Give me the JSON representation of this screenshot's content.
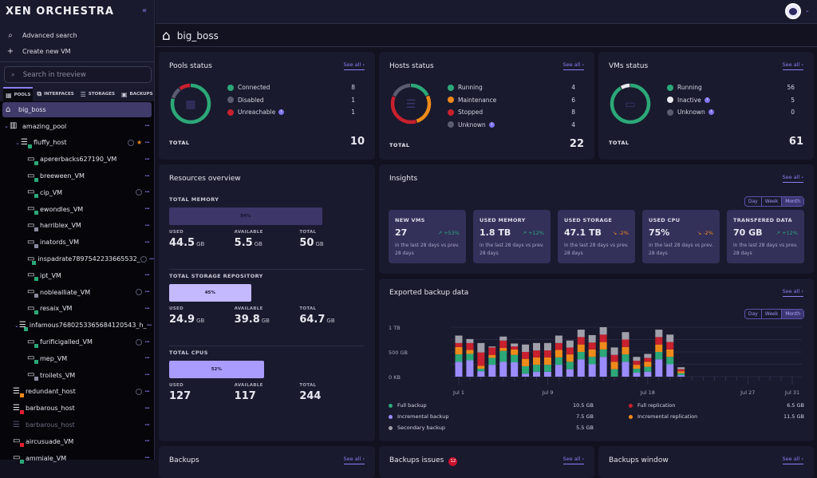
{
  "app": {
    "title": "XEN ORCHESTRA"
  },
  "sidebar": {
    "actions": [
      {
        "label": "Advanced search",
        "icon": "search-icon"
      },
      {
        "label": "Create new VM",
        "icon": "plus-icon"
      }
    ],
    "search_placeholder": "Search in treeview",
    "tabs": [
      {
        "label": "POOLS",
        "active": true
      },
      {
        "label": "INTERFACES"
      },
      {
        "label": "STORAGES"
      },
      {
        "label": "BACKUPS"
      }
    ],
    "tree": [
      {
        "name": "big_boss",
        "type": "home",
        "level": 0,
        "selected": true
      },
      {
        "name": "amazing_pool",
        "type": "pool",
        "level": 0,
        "expanded": true
      },
      {
        "name": "fluffy_host",
        "type": "host",
        "level": 1,
        "expanded": true,
        "status": "running",
        "spinner": true,
        "star": true
      },
      {
        "name": "apererbacks627190_VM",
        "type": "vm",
        "level": 2,
        "status": "running"
      },
      {
        "name": "breeween_VM",
        "type": "vm",
        "level": 2,
        "status": "running"
      },
      {
        "name": "cip_VM",
        "type": "vm",
        "level": 2,
        "status": "running",
        "spinner": true
      },
      {
        "name": "ewondles_VM",
        "type": "vm",
        "level": 2,
        "status": "running"
      },
      {
        "name": "harriblex_VM",
        "type": "vm",
        "level": 2,
        "status": "paused"
      },
      {
        "name": "inatords_VM",
        "type": "vm",
        "level": 2,
        "status": "paused"
      },
      {
        "name": "inspadrate7897542233665532_",
        "type": "vm",
        "level": 2,
        "status": "running",
        "spinner": true
      },
      {
        "name": "ipt_VM",
        "type": "vm",
        "level": 2,
        "status": "running"
      },
      {
        "name": "noblealliate_VM",
        "type": "vm",
        "level": 2,
        "status": "suspended",
        "spinner": true
      },
      {
        "name": "resaix_VM",
        "type": "vm",
        "level": 2,
        "status": "running"
      },
      {
        "name": "infamous7680253365684120543_h_",
        "type": "host",
        "level": 1,
        "expanded": true,
        "status": "running"
      },
      {
        "name": "furificigalled_VM",
        "type": "vm",
        "level": 2,
        "status": "running",
        "spinner": true
      },
      {
        "name": "mep_VM",
        "type": "vm",
        "level": 2,
        "status": "running"
      },
      {
        "name": "troilets_VM",
        "type": "vm",
        "level": 2,
        "status": "suspended"
      },
      {
        "name": "redundant_host",
        "type": "host",
        "level": 0,
        "status": "warning",
        "spinner": true
      },
      {
        "name": "barbarous_host",
        "type": "host",
        "level": 0,
        "status": "halted"
      },
      {
        "name": "barbarous_host",
        "type": "host",
        "level": 0,
        "status": "disabled"
      },
      {
        "name": "aircusuade_VM",
        "type": "vm",
        "level": 0,
        "status": "halted"
      },
      {
        "name": "ammiale_VM",
        "type": "vm",
        "level": 0,
        "status": "running"
      }
    ]
  },
  "page": {
    "title": "big_boss",
    "icon": "home-icon"
  },
  "see_all": "See all",
  "total_label": "TOTAL",
  "pools": {
    "title": "Pools status",
    "items": [
      {
        "label": "Connected",
        "value": 8,
        "color": "#2ca878"
      },
      {
        "label": "Disabled",
        "value": 1,
        "color": "#5c5c70"
      },
      {
        "label": "Unreachable",
        "value": 1,
        "color": "#c8202e",
        "info": true
      }
    ],
    "total": 10
  },
  "hosts": {
    "title": "Hosts status",
    "items": [
      {
        "label": "Running",
        "value": 4,
        "color": "#2ca878"
      },
      {
        "label": "Maintenance",
        "value": 6,
        "color": "#ef8a1a"
      },
      {
        "label": "Stopped",
        "value": 8,
        "color": "#c8202e"
      },
      {
        "label": "Unknown",
        "value": 4,
        "color": "#5c5c70",
        "info": true
      }
    ],
    "total": 22
  },
  "vms": {
    "title": "VMs status",
    "items": [
      {
        "label": "Running",
        "value": 56,
        "color": "#2ca878"
      },
      {
        "label": "Inactive",
        "value": 5,
        "color": "#e8e8ee",
        "info": true
      },
      {
        "label": "Unknown",
        "value": 0,
        "color": "#5c5c70",
        "info": true
      }
    ],
    "total": 61
  },
  "resources": {
    "title": "Resources overview",
    "labels": {
      "used": "USED",
      "available": "AVAILABLE",
      "total": "TOTAL"
    },
    "sections": [
      {
        "label": "TOTAL MEMORY",
        "percent": 84,
        "percent_label": "84%",
        "used": "44.5",
        "available": "5.5",
        "total": "50",
        "unit": "GB",
        "color": "#3c3669"
      },
      {
        "label": "TOTAL STORAGE REPOSITORY",
        "percent": 45,
        "percent_label": "45%",
        "used": "24.9",
        "available": "39.8",
        "total": "64.7",
        "unit": "GB",
        "color": "#c4b8ff"
      },
      {
        "label": "TOTAL CPUS",
        "percent": 52,
        "percent_label": "52%",
        "used": "127",
        "available": "117",
        "total": "244",
        "unit": "",
        "color": "#a99bff"
      }
    ]
  },
  "periods": [
    "Day",
    "Week",
    "Month"
  ],
  "active_period": "Month",
  "insights": {
    "title": "Insights",
    "cards": [
      {
        "label": "NEW VMS",
        "value": "27",
        "trend": "+53%",
        "direction": "up",
        "sub": "in the last 28 days vs prev. 28 days"
      },
      {
        "label": "USED MEMORY",
        "value": "1.8 TB",
        "trend": "+12%",
        "direction": "up",
        "sub": "in the last 28 days vs prev. 28 days"
      },
      {
        "label": "USED STORAGE",
        "value": "47.1 TB",
        "trend": "-2%",
        "direction": "down",
        "sub": "in the last 28 days vs prev. 28 days"
      },
      {
        "label": "USED CPU",
        "value": "75%",
        "trend": "-2%",
        "direction": "down",
        "sub": "in the last 28 days vs prev. 28 days"
      },
      {
        "label": "TRANSFERED DATA",
        "value": "70 GB",
        "trend": "+12%",
        "direction": "up",
        "sub": "in the last 28 days vs prev. 28 days"
      }
    ],
    "colors": {
      "up": "#2ca878",
      "down": "#ef8a1a"
    }
  },
  "backup": {
    "title": "Exported backup data",
    "legend": [
      {
        "label": "Full backup",
        "value": "10.5 GB",
        "color": "#2ca878"
      },
      {
        "label": "Full replication",
        "value": "6.5 GB",
        "color": "#c8202e"
      },
      {
        "label": "Incremental backup",
        "value": "7.5 GB",
        "color": "#9b8cff"
      },
      {
        "label": "Incremental replication",
        "value": "11.5 GB",
        "color": "#ef8a1a"
      },
      {
        "label": "Secondary backup",
        "value": "5.5 GB",
        "color": "#a0a0aa"
      }
    ]
  },
  "chart_data": {
    "type": "bar",
    "stacked": true,
    "x_range": [
      "Jul 1",
      "Jul 31"
    ],
    "x_ticks": [
      {
        "label": "Jul 1",
        "day": 1
      },
      {
        "label": "Jul 9",
        "day": 9
      },
      {
        "label": "Jul 18",
        "day": 18
      },
      {
        "label": "Jul 27",
        "day": 27
      },
      {
        "label": "Jul 31",
        "day": 31
      }
    ],
    "y_ticks": [
      "0 KB",
      "500 GB",
      "1 TB"
    ],
    "ylim_gb": [
      0,
      1000
    ],
    "grid": true,
    "days": [
      1,
      2,
      3,
      4,
      5,
      6,
      7,
      8,
      9,
      10,
      11,
      12,
      13,
      14,
      15,
      16,
      17,
      18,
      19,
      20,
      21
    ],
    "series": [
      {
        "name": "Incremental backup",
        "color": "#9b8cff",
        "values": [
          300,
          330,
          110,
          240,
          300,
          290,
          60,
          100,
          100,
          240,
          150,
          350,
          250,
          400,
          0,
          300,
          80,
          100,
          350,
          250,
          30
        ]
      },
      {
        "name": "Full backup",
        "color": "#2ca878",
        "values": [
          150,
          130,
          50,
          140,
          220,
          150,
          150,
          140,
          140,
          150,
          150,
          150,
          150,
          150,
          150,
          150,
          80,
          100,
          150,
          150,
          40
        ]
      },
      {
        "name": "Incremental replication",
        "color": "#ef8a1a",
        "values": [
          150,
          80,
          60,
          60,
          60,
          110,
          150,
          150,
          150,
          150,
          150,
          150,
          150,
          150,
          150,
          150,
          80,
          100,
          150,
          150,
          40
        ]
      },
      {
        "name": "Full replication",
        "color": "#c8202e",
        "values": [
          80,
          140,
          270,
          150,
          150,
          60,
          140,
          140,
          140,
          140,
          140,
          150,
          140,
          150,
          140,
          150,
          80,
          80,
          150,
          150,
          40
        ]
      },
      {
        "name": "Secondary backup",
        "color": "#a0a0aa",
        "values": [
          150,
          80,
          190,
          20,
          80,
          60,
          150,
          150,
          150,
          150,
          140,
          150,
          150,
          150,
          150,
          150,
          80,
          80,
          150,
          150,
          40
        ]
      }
    ]
  },
  "bottom": [
    {
      "title": "Backups"
    },
    {
      "title": "Backups issues",
      "badge": "12"
    },
    {
      "title": "Backups window"
    }
  ]
}
